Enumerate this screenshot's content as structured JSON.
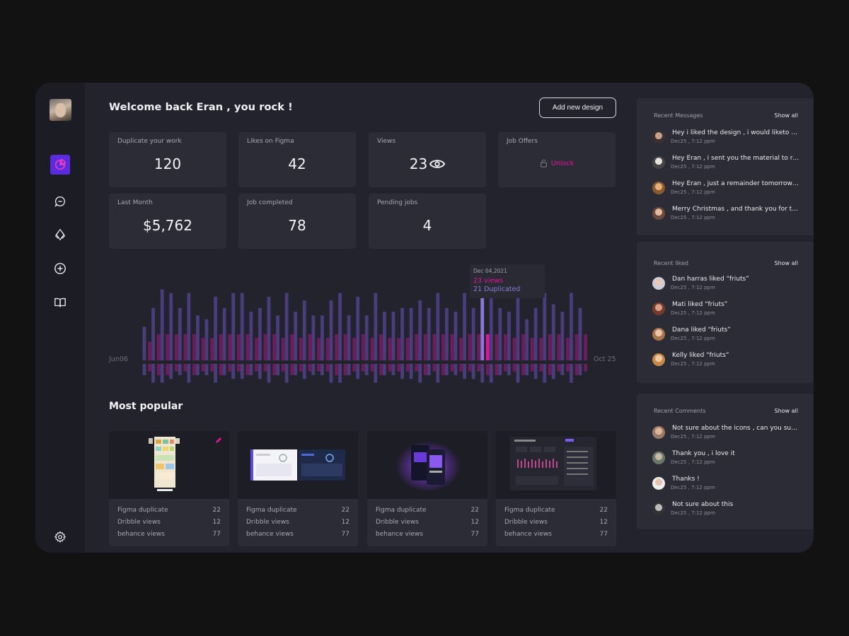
{
  "header": {
    "welcome": "Welcome back Eran , you rock !",
    "add_button": "Add new design"
  },
  "sidebar": {
    "items": [
      {
        "icon": "pie-chart-icon",
        "active": true
      },
      {
        "icon": "chat-icon",
        "active": false
      },
      {
        "icon": "layers-icon",
        "active": false
      },
      {
        "icon": "plus-circle-icon",
        "active": false
      },
      {
        "icon": "book-icon",
        "active": false
      }
    ],
    "settings_icon": "gear-icon"
  },
  "stats": [
    {
      "label": "Duplicate your work",
      "value": "120"
    },
    {
      "label": "Likes on Figma",
      "value": "42"
    },
    {
      "label": "Views",
      "value": "23"
    },
    {
      "label": "Job Offers",
      "action": "Unlock"
    },
    {
      "label": "Last Month",
      "value": "$5,762"
    },
    {
      "label": "Job completed",
      "value": "78"
    },
    {
      "label": "Pending jobs",
      "value": "4"
    }
  ],
  "chart": {
    "x_start_label": "Jun06",
    "x_end_label": "Oct 25",
    "tooltip": {
      "date": "Dec 04,2021",
      "views": "23 views",
      "duplicated": "21  Duplicated"
    }
  },
  "chart_data": {
    "type": "bar",
    "x_labels": [
      "Jun06",
      "Oct 25"
    ],
    "series": [
      {
        "values": [
          9,
          14,
          19,
          18,
          14,
          18,
          12,
          11,
          17,
          14,
          18,
          18,
          13,
          14,
          17,
          12,
          18,
          13,
          16,
          12,
          12,
          16,
          18,
          12,
          17,
          12,
          18,
          13,
          13,
          14,
          14,
          16,
          14,
          18,
          14,
          13,
          18,
          14,
          18,
          18,
          14,
          13,
          18,
          11,
          14,
          18,
          15,
          13,
          18,
          14
        ]
      },
      {
        "values": [
          5,
          7,
          7,
          7,
          7,
          7,
          6,
          6,
          7,
          7,
          7,
          7,
          6,
          7,
          7,
          6,
          7,
          6,
          7,
          6,
          6,
          7,
          7,
          6,
          7,
          6,
          7,
          6,
          6,
          6,
          7,
          7,
          7,
          7,
          7,
          6,
          7,
          7,
          7,
          7,
          7,
          6,
          7,
          6,
          6,
          7,
          7,
          6,
          7,
          7
        ]
      },
      {
        "values": [
          3,
          5,
          5,
          4,
          3,
          5,
          3,
          3,
          5,
          3,
          4,
          4,
          3,
          4,
          5,
          3,
          5,
          3,
          4,
          3,
          3,
          5,
          5,
          3,
          4,
          3,
          5,
          3,
          3,
          4,
          4,
          5,
          3,
          5,
          3,
          3,
          4,
          4,
          5,
          5,
          3,
          3,
          5,
          3,
          4,
          5,
          4,
          3,
          5,
          3
        ]
      },
      {
        "values": [
          2,
          3,
          3,
          2,
          2,
          3,
          2,
          2,
          3,
          2,
          2,
          3,
          2,
          2,
          3,
          2,
          3,
          2,
          2,
          2,
          2,
          3,
          3,
          2,
          2,
          2,
          3,
          2,
          2,
          2,
          2,
          3,
          2,
          3,
          2,
          2,
          2,
          2,
          3,
          3,
          2,
          2,
          3,
          2,
          2,
          3,
          2,
          2,
          3,
          2
        ]
      }
    ],
    "highlight_index": 38,
    "grid": false
  },
  "popular": {
    "title": "Most popular",
    "cards": [
      {
        "rows": [
          {
            "k": "Figma duplicate",
            "v": "22"
          },
          {
            "k": "Dribble views",
            "v": "12"
          },
          {
            "k": "behance views",
            "v": "77"
          }
        ]
      },
      {
        "rows": [
          {
            "k": "Figma duplicate",
            "v": "22"
          },
          {
            "k": "Dribble views",
            "v": "12"
          },
          {
            "k": "behance views",
            "v": "77"
          }
        ]
      },
      {
        "rows": [
          {
            "k": "Figma duplicate",
            "v": "22"
          },
          {
            "k": "Dribble views",
            "v": "12"
          },
          {
            "k": "behance views",
            "v": "77"
          }
        ]
      },
      {
        "rows": [
          {
            "k": "Figma duplicate",
            "v": "22"
          },
          {
            "k": "Dribble views",
            "v": "12"
          },
          {
            "k": "behance views",
            "v": "77"
          }
        ]
      }
    ]
  },
  "messages": {
    "title": "Recent Messages",
    "show_all": "Show all",
    "items": [
      {
        "text": "Hey i liked the design , i would liketo talk",
        "time": "Dec25 , 7:12 ppm"
      },
      {
        "text": "Hey Eran , i sent you the material to review",
        "time": "Dec25 , 7:12 ppm"
      },
      {
        "text": "Hey Eran , just a remainder tomorrow meeting",
        "time": "Dec25 , 7:12 ppm"
      },
      {
        "text": "Merry Christmas , and thank you for the work",
        "time": "Dec25 , 7:12 ppm"
      }
    ]
  },
  "liked": {
    "title": "Recent liked",
    "show_all": "Show all",
    "items": [
      {
        "text": "Dan harras liked “friuts”",
        "time": "Dec25 , 7:12 ppm"
      },
      {
        "text": "Mati  liked “friuts”",
        "time": "Dec25 , 7:12 ppm"
      },
      {
        "text": "Dana liked “friuts”",
        "time": "Dec25 , 7:12 ppm"
      },
      {
        "text": "Kelly  liked “friuts”",
        "time": "Dec25 , 7:12 ppm"
      }
    ]
  },
  "comments": {
    "title": "Recent Comments",
    "show_all": "Show all",
    "items": [
      {
        "text": "Not sure about the icons , can you suggest",
        "time": "Dec25 , 7:12 ppm"
      },
      {
        "text": "Thank you , i love it",
        "time": "Dec25 , 7:12 ppm"
      },
      {
        "text": "Thanks !",
        "time": "Dec25 , 7:12 ppm"
      },
      {
        "text": "Not sure about this",
        "time": "Dec25 , 7:12 ppm"
      }
    ]
  },
  "colors": {
    "accent": "#e0149a",
    "purple": "#5b2be0",
    "bar_violet": "#4a3d7c",
    "bar_magenta": "#6b1d5c",
    "highlight_violet": "#8a78d8"
  }
}
